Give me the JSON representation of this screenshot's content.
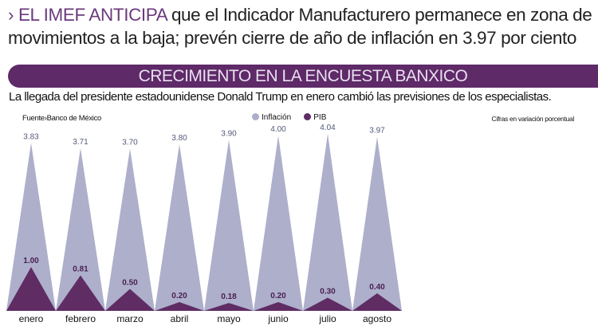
{
  "headline": {
    "lead": "› EL IMEF ANTICIPA",
    "rest": " que el Indicador Manufacturero permanece en zona de movimientos a la baja; prevén cierre de año de inflación en 3.97 por ciento"
  },
  "band_title": "CRECIMIENTO EN LA ENCUESTA BANXICO",
  "subtitle": "La llegada del presidente estadounidense Donald Trump en enero cambió las previsiones de los especialistas.",
  "source": "Fuente›Banco de México",
  "units": "Cifras en variación porcentual",
  "colors": {
    "inflacion": "#adafcb",
    "pib": "#5f2c64",
    "band": "#5e2a68"
  },
  "chart_data": {
    "type": "bar",
    "categories": [
      "enero",
      "febrero",
      "marzo",
      "abril",
      "mayo",
      "junio",
      "julio",
      "agosto"
    ],
    "series": [
      {
        "name": "Inflación",
        "values": [
          3.83,
          3.71,
          3.7,
          3.8,
          3.9,
          4.0,
          4.04,
          3.97
        ],
        "labels": [
          "3.83",
          "3.71",
          "3.70",
          "3.80",
          "3.90",
          "4.00",
          "4.04",
          "3.97"
        ]
      },
      {
        "name": "PIB",
        "values": [
          1.0,
          0.81,
          0.5,
          0.2,
          0.18,
          0.2,
          0.3,
          0.4
        ],
        "labels": [
          "1.00",
          "0.81",
          "0.50",
          "0.20",
          "0.18",
          "0.20",
          "0.30",
          "0.40"
        ]
      }
    ],
    "legend": "top-center"
  }
}
